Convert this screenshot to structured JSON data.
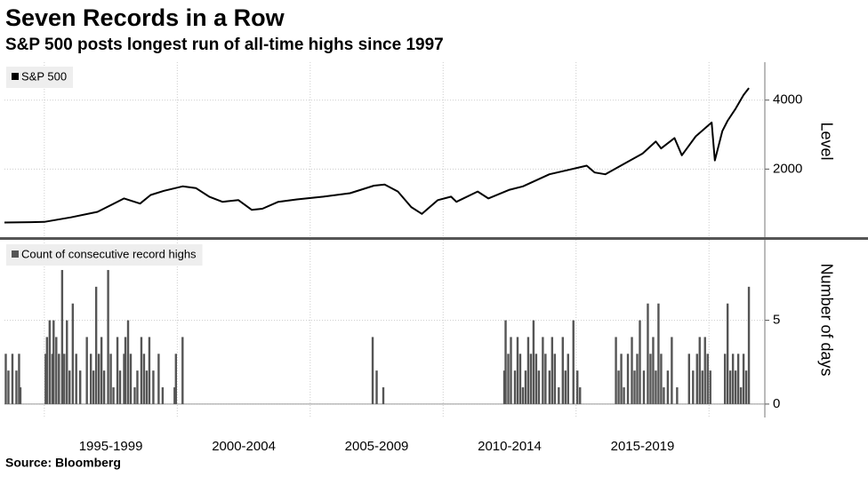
{
  "title": "Seven Records in a Row",
  "subtitle": "S&P 500 posts longest run of all-time highs since 1997",
  "source": "Source: Bloomberg",
  "chart_data": [
    {
      "type": "line",
      "legend": "S&P 500",
      "color": "#000000",
      "ylabel": "Level",
      "xlim": [
        1993.5,
        2022.1
      ],
      "ylim": [
        0,
        5100
      ],
      "yticks": [
        2000,
        4000
      ],
      "xgrid": [
        1995,
        2000,
        2005,
        2010,
        2015,
        2020
      ],
      "grid": true,
      "x": [
        1993.5,
        1994.5,
        1995,
        1996,
        1997,
        1998,
        1998.6,
        1999,
        1999.5,
        2000.2,
        2000.7,
        2001.2,
        2001.7,
        2002.3,
        2002.8,
        2003.2,
        2003.8,
        2004.5,
        2005.5,
        2006.5,
        2007.4,
        2007.8,
        2008.3,
        2008.8,
        2009.2,
        2009.8,
        2010.3,
        2010.5,
        2011.3,
        2011.7,
        2012.5,
        2013,
        2014,
        2015.4,
        2015.7,
        2016.1,
        2016.8,
        2017.5,
        2018.0,
        2018.2,
        2018.7,
        2018.98,
        2019.5,
        2020.1,
        2020.22,
        2020.5,
        2020.7,
        2021,
        2021.3,
        2021.5
      ],
      "values": [
        450,
        460,
        470,
        600,
        760,
        1150,
        1000,
        1250,
        1370,
        1500,
        1450,
        1200,
        1050,
        1100,
        820,
        850,
        1050,
        1120,
        1200,
        1300,
        1520,
        1550,
        1350,
        900,
        700,
        1100,
        1200,
        1050,
        1350,
        1150,
        1400,
        1500,
        1850,
        2100,
        1900,
        1850,
        2150,
        2450,
        2800,
        2600,
        2900,
        2400,
        2950,
        3350,
        2250,
        3100,
        3400,
        3750,
        4150,
        4350
      ]
    },
    {
      "type": "bar",
      "legend": "Count of consecutive record highs",
      "color": "#555555",
      "ylabel": "Number of days",
      "xlim": [
        1993.5,
        2022.1
      ],
      "ylim": [
        -0.8,
        9.8
      ],
      "yticks": [
        0,
        5
      ],
      "xgrid": [
        1995,
        2000,
        2005,
        2010,
        2015,
        2020
      ],
      "grid": true,
      "xticks": [
        {
          "value": 1997.5,
          "label": "1995-1999"
        },
        {
          "value": 2002.5,
          "label": "2000-2004"
        },
        {
          "value": 2007.5,
          "label": "2005-2009"
        },
        {
          "value": 2012.5,
          "label": "2010-2014"
        },
        {
          "value": 2017.5,
          "label": "2015-2019"
        }
      ],
      "x": [
        1993.55,
        1993.65,
        1993.8,
        1993.95,
        1994.05,
        1994.1,
        1995.05,
        1995.1,
        1995.2,
        1995.3,
        1995.35,
        1995.45,
        1995.55,
        1995.67,
        1995.75,
        1995.85,
        1995.95,
        1996.07,
        1996.2,
        1996.35,
        1996.6,
        1996.75,
        1996.85,
        1996.95,
        1997.05,
        1997.15,
        1997.25,
        1997.4,
        1997.5,
        1997.6,
        1997.75,
        1997.85,
        1998.0,
        1998.05,
        1998.15,
        1998.25,
        1998.4,
        1998.5,
        1998.65,
        1998.75,
        1998.85,
        1998.95,
        1999.1,
        1999.3,
        1999.45,
        1999.9,
        1999.95,
        2000.2,
        2007.35,
        2007.5,
        2007.75,
        2012.3,
        2012.35,
        2012.45,
        2012.55,
        2012.7,
        2012.8,
        2012.9,
        2013.0,
        2013.1,
        2013.2,
        2013.3,
        2013.4,
        2013.5,
        2013.6,
        2013.75,
        2013.85,
        2014.0,
        2014.1,
        2014.2,
        2014.35,
        2014.5,
        2014.6,
        2014.7,
        2014.9,
        2015.05,
        2015.15,
        2016.5,
        2016.6,
        2016.7,
        2016.8,
        2016.95,
        2017.1,
        2017.2,
        2017.3,
        2017.4,
        2017.55,
        2017.7,
        2017.8,
        2017.9,
        2018.0,
        2018.1,
        2018.2,
        2018.3,
        2018.45,
        2018.6,
        2018.8,
        2019.25,
        2019.4,
        2019.55,
        2019.65,
        2019.75,
        2019.85,
        2019.95,
        2020.05,
        2020.6,
        2020.7,
        2020.8,
        2020.9,
        2021.0,
        2021.1,
        2021.2,
        2021.3,
        2021.4,
        2021.5
      ],
      "values": [
        3,
        2,
        3,
        2,
        3,
        1,
        3,
        4,
        5,
        3,
        5,
        4,
        3,
        8,
        3,
        5,
        2,
        6,
        3,
        2,
        4,
        3,
        2,
        7,
        3,
        4,
        2,
        8,
        3,
        1,
        4,
        2,
        3,
        4,
        5,
        3,
        1,
        2,
        4,
        3,
        2,
        4,
        2,
        3,
        1,
        1,
        3,
        4,
        4,
        2,
        1,
        2,
        5,
        3,
        4,
        2,
        4,
        3,
        1,
        2,
        4,
        3,
        5,
        3,
        2,
        4,
        3,
        2,
        4,
        3,
        1,
        4,
        2,
        3,
        5,
        2,
        1,
        4,
        2,
        3,
        1,
        3,
        4,
        2,
        3,
        5,
        2,
        6,
        3,
        4,
        2,
        6,
        3,
        1,
        2,
        4,
        1,
        3,
        2,
        3,
        4,
        2,
        4,
        3,
        2,
        3,
        6,
        2,
        3,
        2,
        3,
        1,
        3,
        2,
        7
      ]
    }
  ]
}
